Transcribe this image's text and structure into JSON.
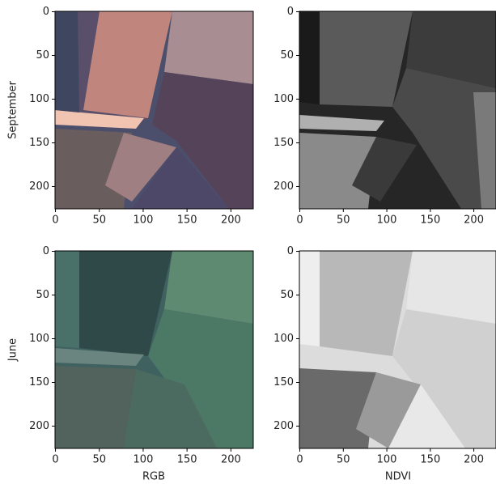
{
  "chart_data": [
    {
      "type": "image",
      "ylabel": "September",
      "xlim": [
        -0.5,
        225.5
      ],
      "ylim": [
        225.5,
        -0.5
      ],
      "xticks": [
        0,
        50,
        100,
        150,
        200
      ],
      "yticks": [
        0,
        50,
        100,
        150,
        200
      ]
    },
    {
      "type": "image",
      "xlim": [
        -0.5,
        225.5
      ],
      "ylim": [
        225.5,
        -0.5
      ],
      "xticks": [
        0,
        50,
        100,
        150,
        200
      ],
      "yticks": [
        0,
        50,
        100,
        150,
        200
      ]
    },
    {
      "type": "image",
      "ylabel": "June",
      "xlabel": "RGB",
      "xlim": [
        -0.5,
        225.5
      ],
      "ylim": [
        225.5,
        -0.5
      ],
      "xticks": [
        0,
        50,
        100,
        150,
        200
      ],
      "yticks": [
        0,
        50,
        100,
        150,
        200
      ]
    },
    {
      "type": "image",
      "xlabel": "NDVI",
      "xlim": [
        -0.5,
        225.5
      ],
      "ylim": [
        225.5,
        -0.5
      ],
      "xticks": [
        0,
        50,
        100,
        150,
        200
      ],
      "yticks": [
        0,
        50,
        100,
        150,
        200
      ]
    }
  ]
}
